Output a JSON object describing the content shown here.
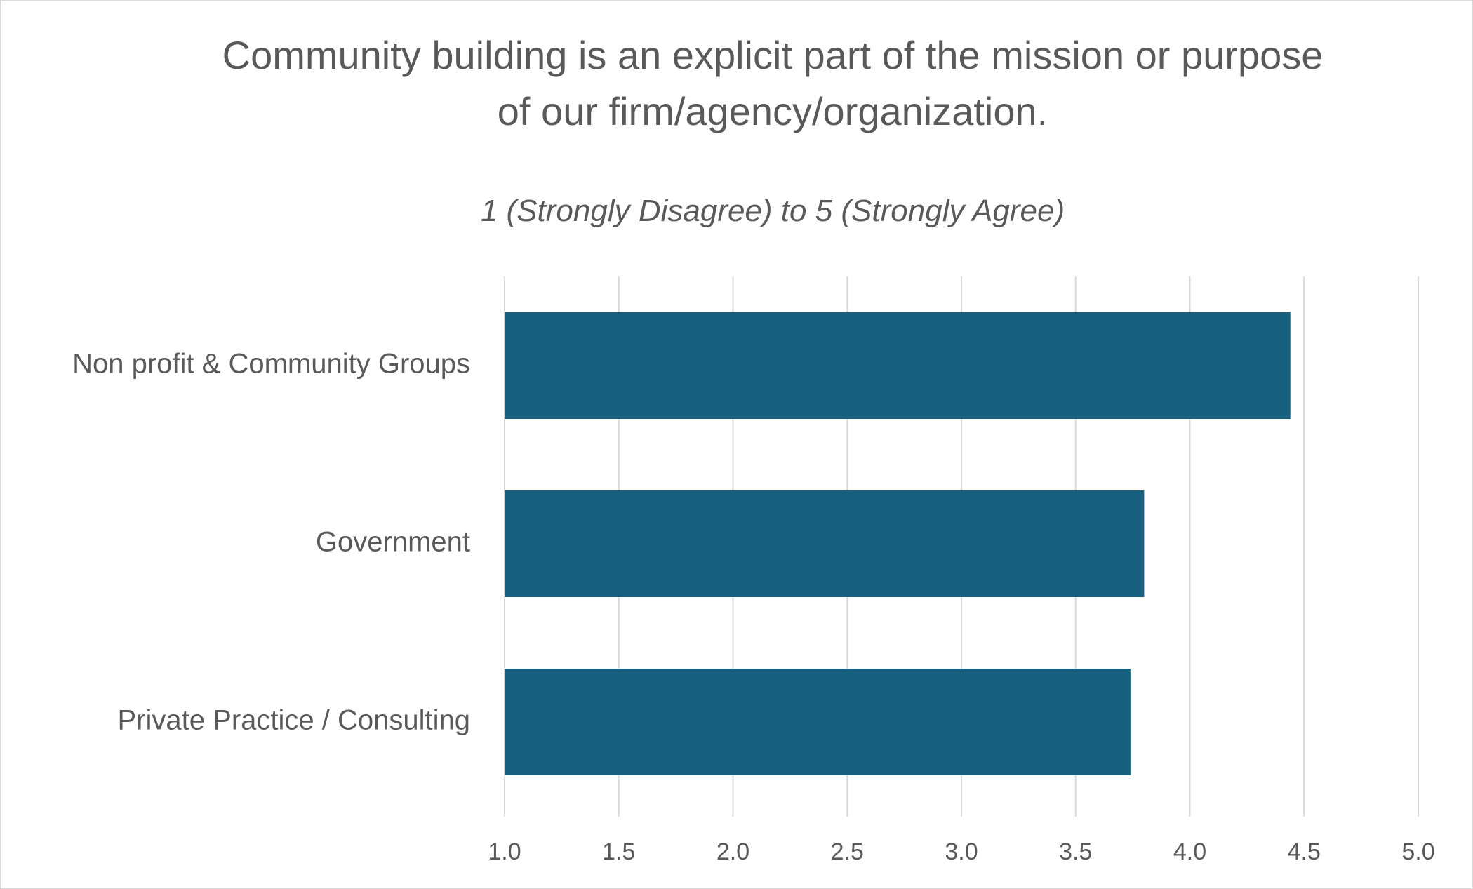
{
  "chart_data": {
    "type": "bar",
    "orientation": "horizontal",
    "title": "Community building is an explicit part of the mission or purpose of our firm/agency/organization.",
    "title_lines": [
      "Community building is an explicit part of the mission or purpose",
      "of our firm/agency/organization."
    ],
    "subtitle": "1 (Strongly Disagree) to 5 (Strongly Agree)",
    "categories": [
      "Non profit & Community Groups",
      "Government",
      "Private Practice / Consulting"
    ],
    "values": [
      4.44,
      3.8,
      3.74
    ],
    "xlim": [
      1.0,
      5.0
    ],
    "x_ticks": [
      "1.0",
      "1.5",
      "2.0",
      "2.5",
      "3.0",
      "3.5",
      "4.0",
      "4.5",
      "5.0"
    ],
    "xlabel": "",
    "ylabel": "",
    "grid": "vertical",
    "legend": "none",
    "bar_color": "#17607f",
    "gridline_color": "#d9d9d9",
    "text_color": "#595959"
  }
}
